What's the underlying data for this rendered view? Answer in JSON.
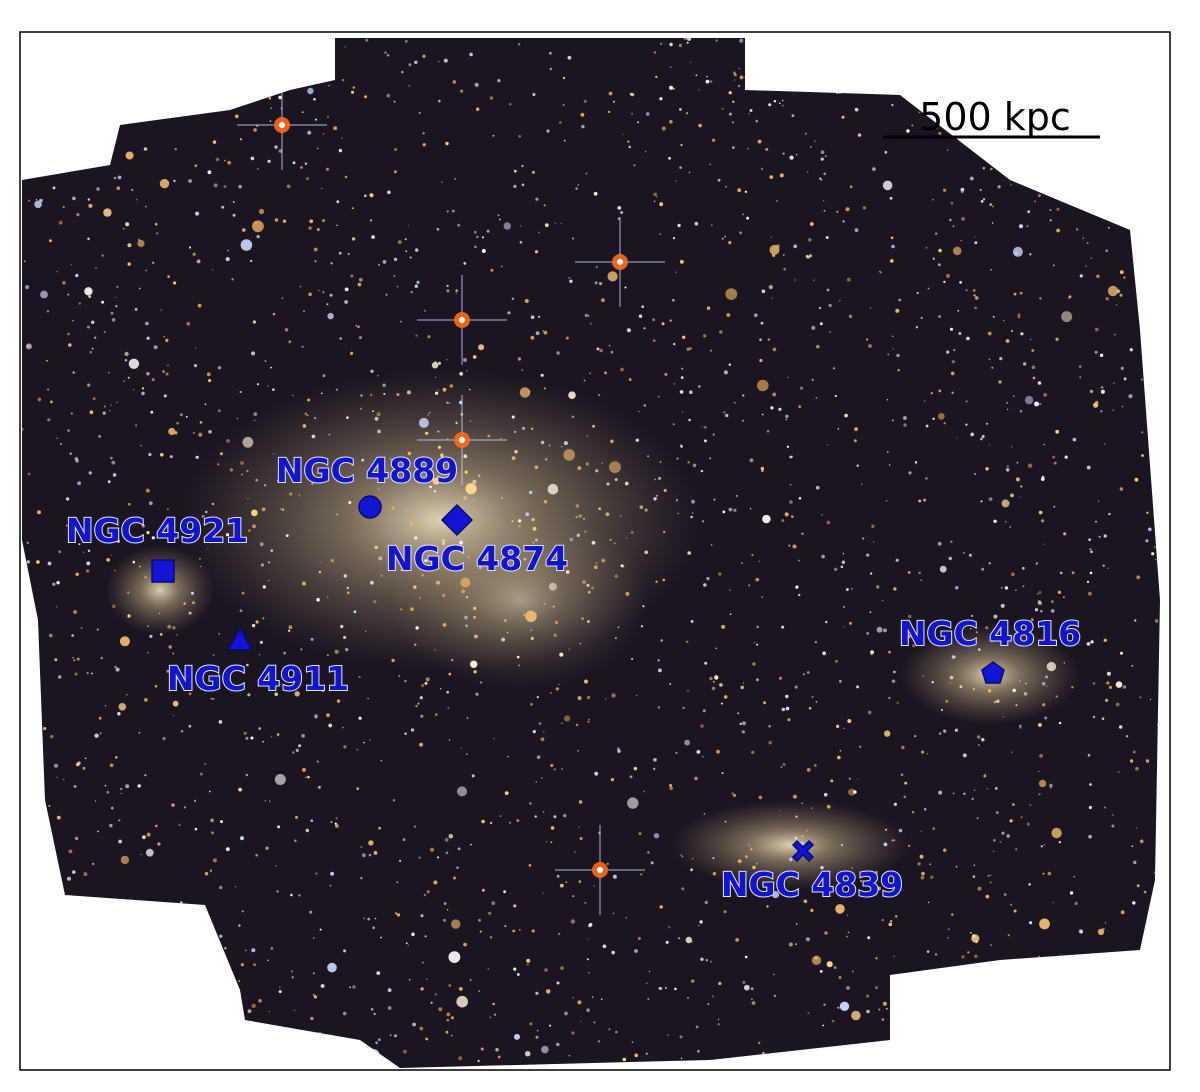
{
  "scale_bar": "500 kpc",
  "labels": [
    "NGC 4889",
    "NGC 4874",
    "NGC 4921",
    "NGC 4911",
    "NGC 4816",
    "NGC 4839"
  ]
}
